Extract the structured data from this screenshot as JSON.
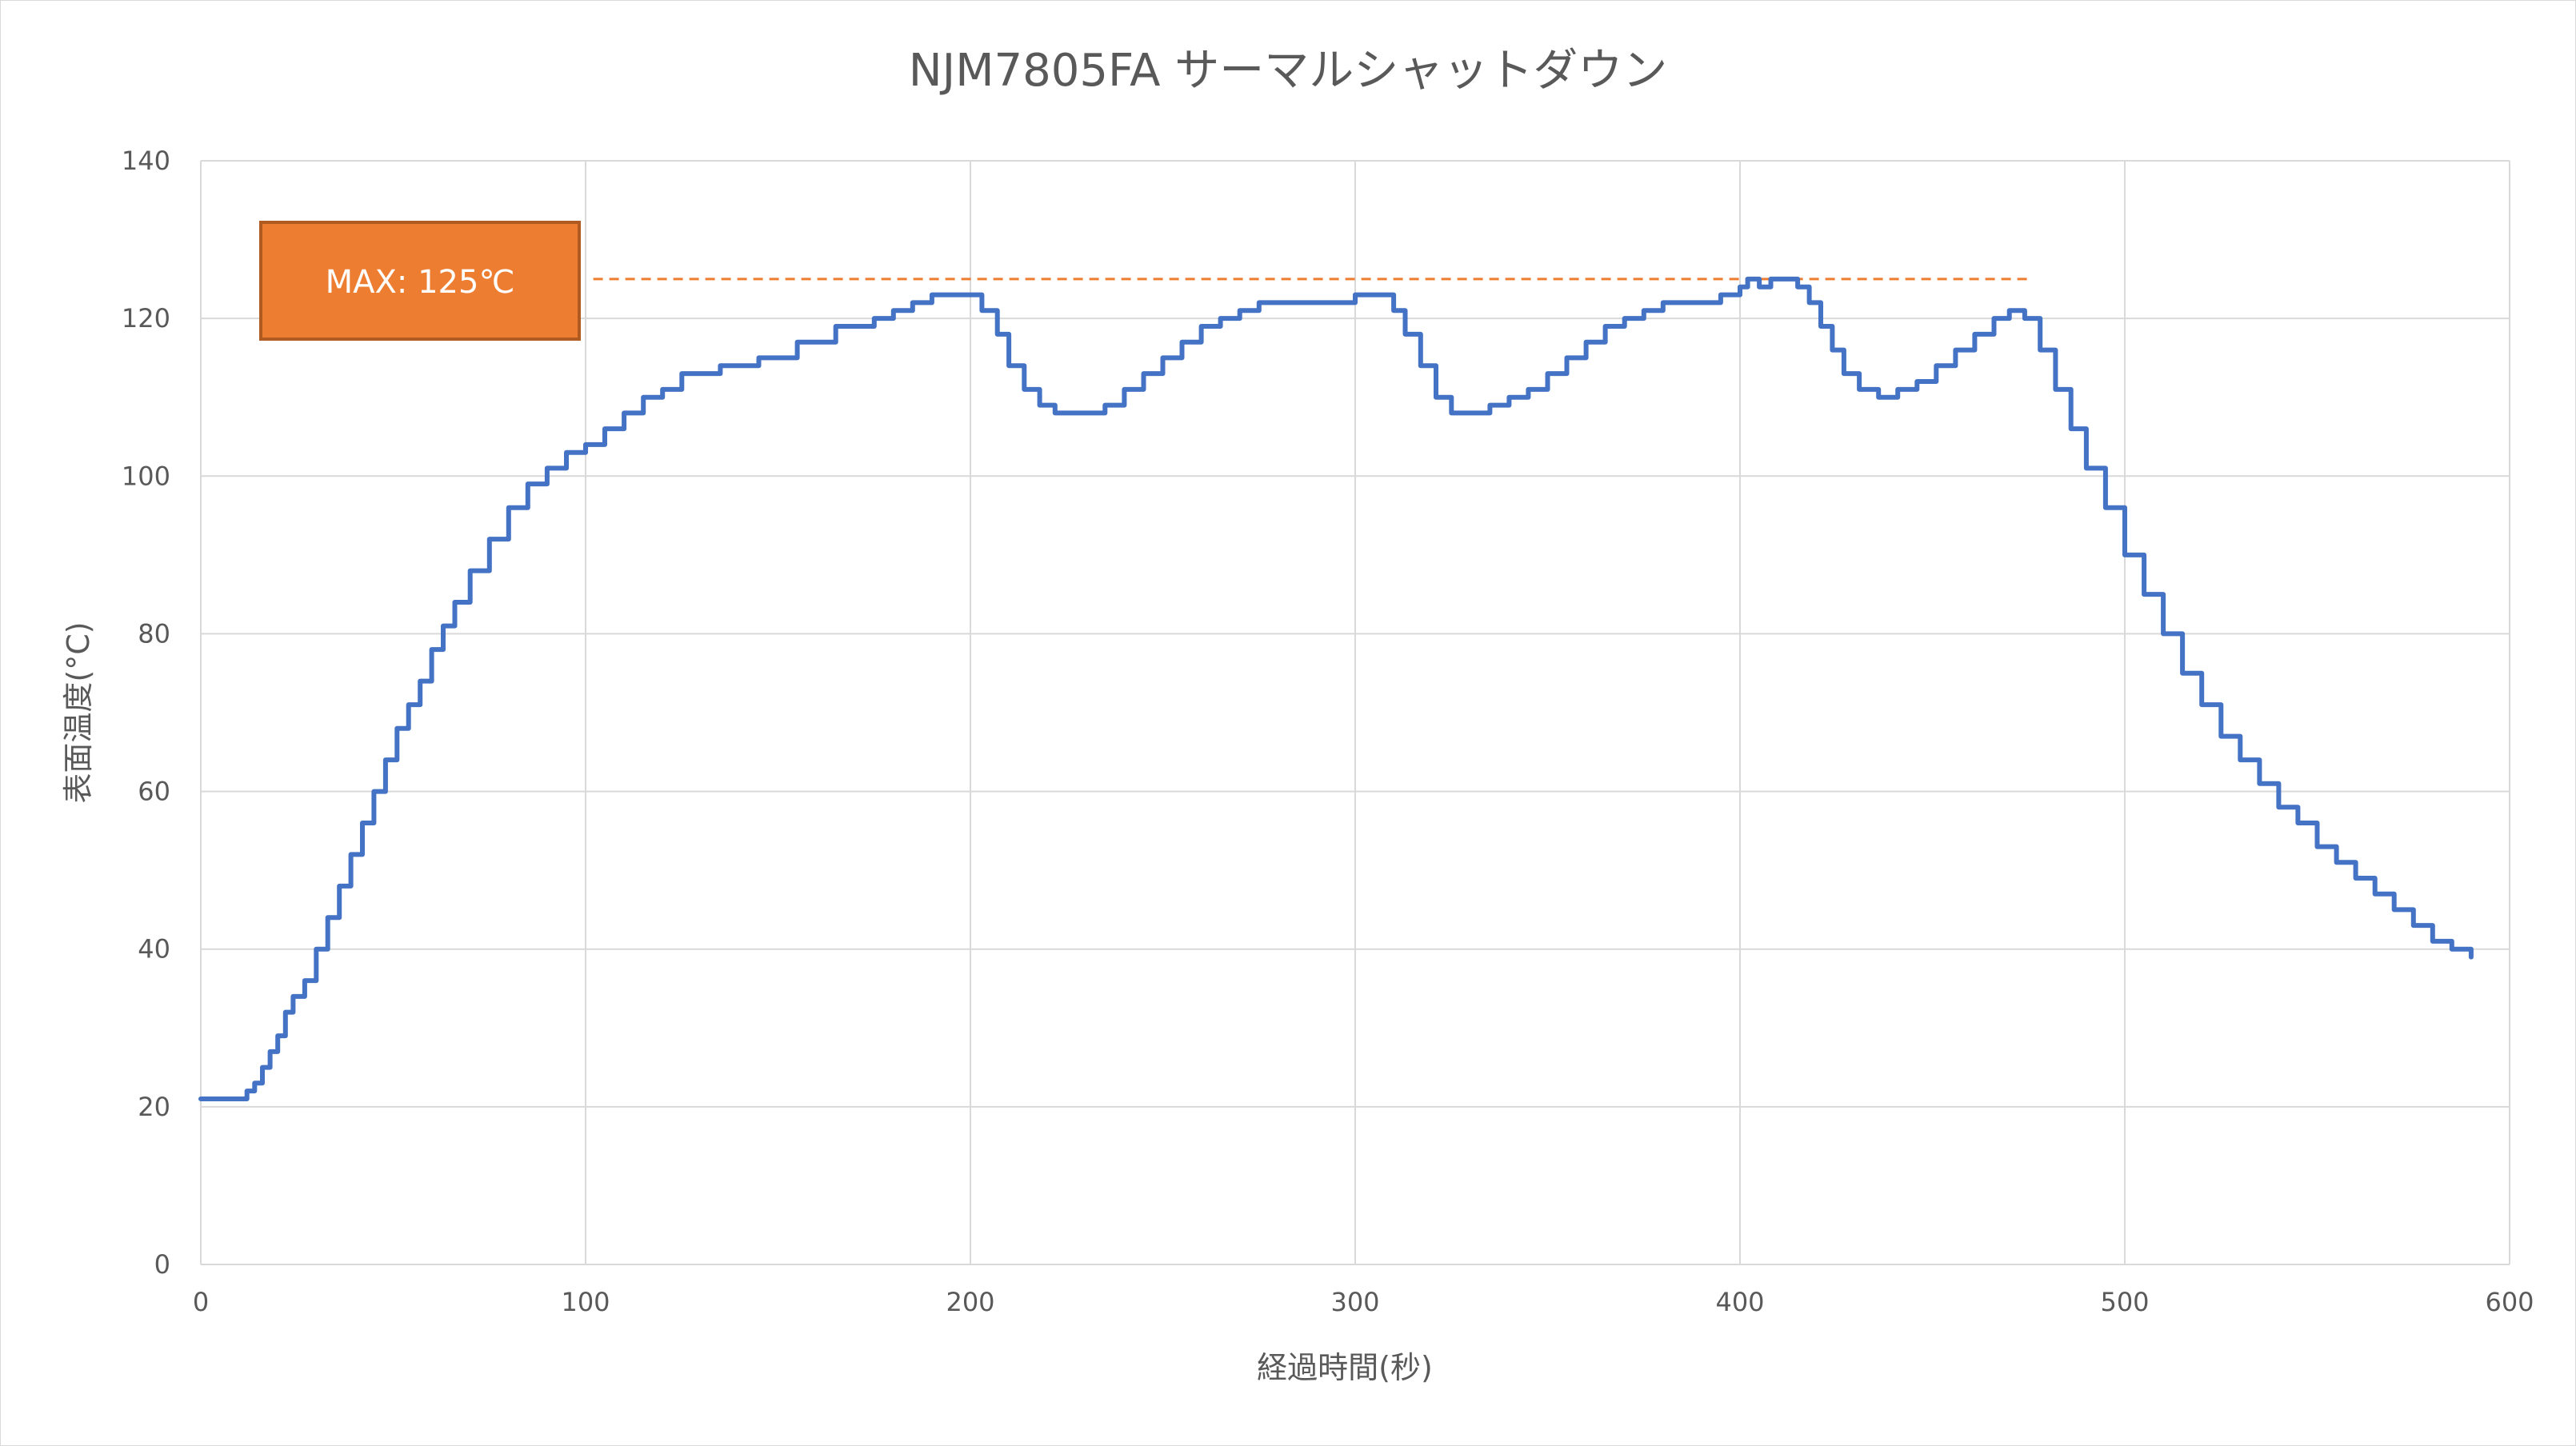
{
  "chart_data": {
    "type": "line",
    "title": "NJM7805FA サーマルシャットダウン",
    "xlabel": "経過時間(秒)",
    "ylabel": "表面温度(°C)",
    "xlim": [
      0,
      600
    ],
    "ylim": [
      0,
      140
    ],
    "x_ticks": [
      "0",
      "100",
      "200",
      "300",
      "400",
      "500",
      "600"
    ],
    "y_ticks": [
      "0",
      "20",
      "40",
      "60",
      "80",
      "100",
      "120",
      "140"
    ],
    "grid": true,
    "legend": "none",
    "series_color": "#4472c4",
    "reference_line": {
      "y": 125,
      "x_range": [
        102,
        476
      ],
      "color": "#ed7d31",
      "style": "dashed"
    },
    "annotation": {
      "text": "MAX: 125℃",
      "color": "#ed7d31"
    },
    "series": [
      {
        "points": [
          [
            0,
            21
          ],
          [
            10,
            21
          ],
          [
            12,
            22
          ],
          [
            14,
            23
          ],
          [
            16,
            25
          ],
          [
            18,
            27
          ],
          [
            20,
            29
          ],
          [
            22,
            32
          ],
          [
            24,
            34
          ],
          [
            27,
            36
          ],
          [
            30,
            40
          ],
          [
            33,
            44
          ],
          [
            36,
            48
          ],
          [
            39,
            52
          ],
          [
            42,
            56
          ],
          [
            45,
            60
          ],
          [
            48,
            64
          ],
          [
            51,
            68
          ],
          [
            54,
            71
          ],
          [
            57,
            74
          ],
          [
            60,
            78
          ],
          [
            63,
            81
          ],
          [
            66,
            84
          ],
          [
            70,
            88
          ],
          [
            75,
            92
          ],
          [
            80,
            96
          ],
          [
            85,
            99
          ],
          [
            90,
            101
          ],
          [
            95,
            103
          ],
          [
            100,
            104
          ],
          [
            105,
            106
          ],
          [
            110,
            108
          ],
          [
            115,
            110
          ],
          [
            120,
            111
          ],
          [
            125,
            113
          ],
          [
            135,
            114
          ],
          [
            145,
            115
          ],
          [
            155,
            117
          ],
          [
            165,
            119
          ],
          [
            175,
            120
          ],
          [
            180,
            121
          ],
          [
            185,
            122
          ],
          [
            190,
            123
          ],
          [
            200,
            123
          ],
          [
            203,
            121
          ],
          [
            207,
            118
          ],
          [
            210,
            114
          ],
          [
            214,
            111
          ],
          [
            218,
            109
          ],
          [
            222,
            108
          ],
          [
            230,
            108
          ],
          [
            235,
            109
          ],
          [
            240,
            111
          ],
          [
            245,
            113
          ],
          [
            250,
            115
          ],
          [
            255,
            117
          ],
          [
            260,
            119
          ],
          [
            265,
            120
          ],
          [
            270,
            121
          ],
          [
            275,
            122
          ],
          [
            280,
            122
          ],
          [
            290,
            122
          ],
          [
            300,
            123
          ],
          [
            307,
            123
          ],
          [
            310,
            121
          ],
          [
            313,
            118
          ],
          [
            317,
            114
          ],
          [
            321,
            110
          ],
          [
            325,
            108
          ],
          [
            330,
            108
          ],
          [
            335,
            109
          ],
          [
            340,
            110
          ],
          [
            345,
            111
          ],
          [
            350,
            113
          ],
          [
            355,
            115
          ],
          [
            360,
            117
          ],
          [
            365,
            119
          ],
          [
            370,
            120
          ],
          [
            375,
            121
          ],
          [
            380,
            122
          ],
          [
            390,
            122
          ],
          [
            395,
            123
          ],
          [
            400,
            124
          ],
          [
            402,
            125
          ],
          [
            405,
            124
          ],
          [
            408,
            125
          ],
          [
            412,
            125
          ],
          [
            415,
            124
          ],
          [
            418,
            122
          ],
          [
            421,
            119
          ],
          [
            424,
            116
          ],
          [
            427,
            113
          ],
          [
            431,
            111
          ],
          [
            436,
            110
          ],
          [
            441,
            111
          ],
          [
            446,
            112
          ],
          [
            451,
            114
          ],
          [
            456,
            116
          ],
          [
            461,
            118
          ],
          [
            466,
            120
          ],
          [
            470,
            121
          ],
          [
            474,
            120
          ],
          [
            478,
            116
          ],
          [
            482,
            111
          ],
          [
            486,
            106
          ],
          [
            490,
            101
          ],
          [
            495,
            96
          ],
          [
            500,
            90
          ],
          [
            505,
            85
          ],
          [
            510,
            80
          ],
          [
            515,
            75
          ],
          [
            520,
            71
          ],
          [
            525,
            67
          ],
          [
            530,
            64
          ],
          [
            535,
            61
          ],
          [
            540,
            58
          ],
          [
            545,
            56
          ],
          [
            550,
            53
          ],
          [
            555,
            51
          ],
          [
            560,
            49
          ],
          [
            565,
            47
          ],
          [
            570,
            45
          ],
          [
            575,
            43
          ],
          [
            580,
            41
          ],
          [
            585,
            40
          ],
          [
            590,
            39
          ]
        ]
      }
    ]
  }
}
